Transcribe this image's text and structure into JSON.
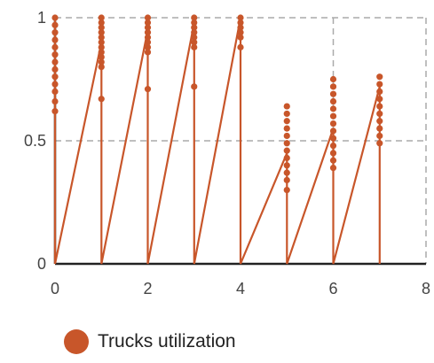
{
  "chart_data": {
    "type": "scatter",
    "xlim": [
      0,
      8
    ],
    "ylim": [
      0,
      1
    ],
    "x_ticks": [
      0,
      2,
      4,
      6,
      8
    ],
    "y_ticks": [
      0,
      0.5,
      1
    ],
    "x_tick_labels": [
      "0",
      "2",
      "4",
      "6",
      "8"
    ],
    "y_tick_labels": [
      "0",
      "0.5",
      "1"
    ],
    "grid": true,
    "legend_placement": "bottom-left",
    "series": [
      {
        "name": "Trucks utilization",
        "color": "#c8562a",
        "line": [
          [
            0,
            1
          ],
          [
            0,
            0
          ],
          [
            1,
            0.9
          ],
          [
            1,
            0
          ],
          [
            2,
            0.95
          ],
          [
            2,
            0
          ],
          [
            3,
            0.98
          ],
          [
            3,
            0
          ],
          [
            4,
            1
          ],
          [
            4,
            0
          ],
          [
            5,
            0.45
          ],
          [
            5,
            0
          ],
          [
            6,
            0.55
          ],
          [
            6,
            0
          ],
          [
            7,
            0.72
          ],
          [
            7,
            0
          ]
        ],
        "points": [
          [
            0,
            1
          ],
          [
            0,
            0.97
          ],
          [
            0,
            0.94
          ],
          [
            0,
            0.91
          ],
          [
            0,
            0.88
          ],
          [
            0,
            0.85
          ],
          [
            0,
            0.82
          ],
          [
            0,
            0.79
          ],
          [
            0,
            0.76
          ],
          [
            0,
            0.73
          ],
          [
            0,
            0.7
          ],
          [
            0,
            0.66
          ],
          [
            0,
            0.62
          ],
          [
            1,
            1
          ],
          [
            1,
            0.98
          ],
          [
            1,
            0.96
          ],
          [
            1,
            0.94
          ],
          [
            1,
            0.92
          ],
          [
            1,
            0.9
          ],
          [
            1,
            0.88
          ],
          [
            1,
            0.86
          ],
          [
            1,
            0.84
          ],
          [
            1,
            0.82
          ],
          [
            1,
            0.8
          ],
          [
            1,
            0.67
          ],
          [
            2,
            1
          ],
          [
            2,
            0.98
          ],
          [
            2,
            0.96
          ],
          [
            2,
            0.94
          ],
          [
            2,
            0.92
          ],
          [
            2,
            0.9
          ],
          [
            2,
            0.88
          ],
          [
            2,
            0.86
          ],
          [
            2,
            0.71
          ],
          [
            3,
            1
          ],
          [
            3,
            0.98
          ],
          [
            3,
            0.96
          ],
          [
            3,
            0.94
          ],
          [
            3,
            0.92
          ],
          [
            3,
            0.9
          ],
          [
            3,
            0.88
          ],
          [
            3,
            0.72
          ],
          [
            4,
            1
          ],
          [
            4,
            0.98
          ],
          [
            4,
            0.96
          ],
          [
            4,
            0.94
          ],
          [
            4,
            0.92
          ],
          [
            4,
            0.88
          ],
          [
            5,
            0.64
          ],
          [
            5,
            0.61
          ],
          [
            5,
            0.58
          ],
          [
            5,
            0.55
          ],
          [
            5,
            0.52
          ],
          [
            5,
            0.49
          ],
          [
            5,
            0.46
          ],
          [
            5,
            0.43
          ],
          [
            5,
            0.4
          ],
          [
            5,
            0.37
          ],
          [
            5,
            0.34
          ],
          [
            5,
            0.3
          ],
          [
            6,
            0.75
          ],
          [
            6,
            0.72
          ],
          [
            6,
            0.69
          ],
          [
            6,
            0.66
          ],
          [
            6,
            0.63
          ],
          [
            6,
            0.6
          ],
          [
            6,
            0.57
          ],
          [
            6,
            0.54
          ],
          [
            6,
            0.51
          ],
          [
            6,
            0.48
          ],
          [
            6,
            0.45
          ],
          [
            6,
            0.42
          ],
          [
            6,
            0.39
          ],
          [
            7,
            0.76
          ],
          [
            7,
            0.73
          ],
          [
            7,
            0.7
          ],
          [
            7,
            0.67
          ],
          [
            7,
            0.64
          ],
          [
            7,
            0.61
          ],
          [
            7,
            0.58
          ],
          [
            7,
            0.55
          ],
          [
            7,
            0.52
          ],
          [
            7,
            0.49
          ]
        ]
      }
    ]
  },
  "legend": {
    "label": "Trucks utilization",
    "color": "#c8562a"
  }
}
